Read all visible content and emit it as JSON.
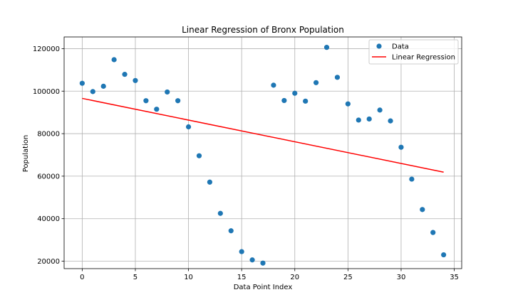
{
  "chart_data": {
    "type": "scatter",
    "title": "Linear Regression of Bronx Population",
    "xlabel": "Data Point Index",
    "ylabel": "Population",
    "xlim": [
      -1.7,
      35.7
    ],
    "ylim": [
      16500,
      125500
    ],
    "xticks": [
      0,
      5,
      10,
      15,
      20,
      25,
      30,
      35
    ],
    "yticks": [
      20000,
      40000,
      60000,
      80000,
      100000,
      120000
    ],
    "grid": true,
    "legend_position": "top-right",
    "colors": {
      "data": "#1f77b4",
      "regression": "#ff0000",
      "grid": "#b0b0b0"
    },
    "series": [
      {
        "name": "Data",
        "kind": "scatter",
        "x": [
          0,
          1,
          2,
          3,
          4,
          5,
          6,
          7,
          8,
          9,
          10,
          11,
          12,
          13,
          14,
          15,
          16,
          17,
          18,
          19,
          20,
          21,
          22,
          23,
          24,
          25,
          26,
          27,
          28,
          29,
          30,
          31,
          32,
          33,
          34
        ],
        "y": [
          103700,
          99800,
          102300,
          114800,
          107900,
          105000,
          95500,
          91500,
          99600,
          95500,
          83200,
          69600,
          57200,
          42500,
          34300,
          24500,
          20600,
          19100,
          102800,
          95600,
          99000,
          95300,
          104000,
          120600,
          106500,
          94000,
          86400,
          86900,
          91100,
          86000,
          73600,
          58600,
          44300,
          33500,
          23000
        ]
      },
      {
        "name": "Linear Regression",
        "kind": "line",
        "x": [
          0,
          34
        ],
        "y": [
          96600,
          61900
        ]
      }
    ]
  }
}
